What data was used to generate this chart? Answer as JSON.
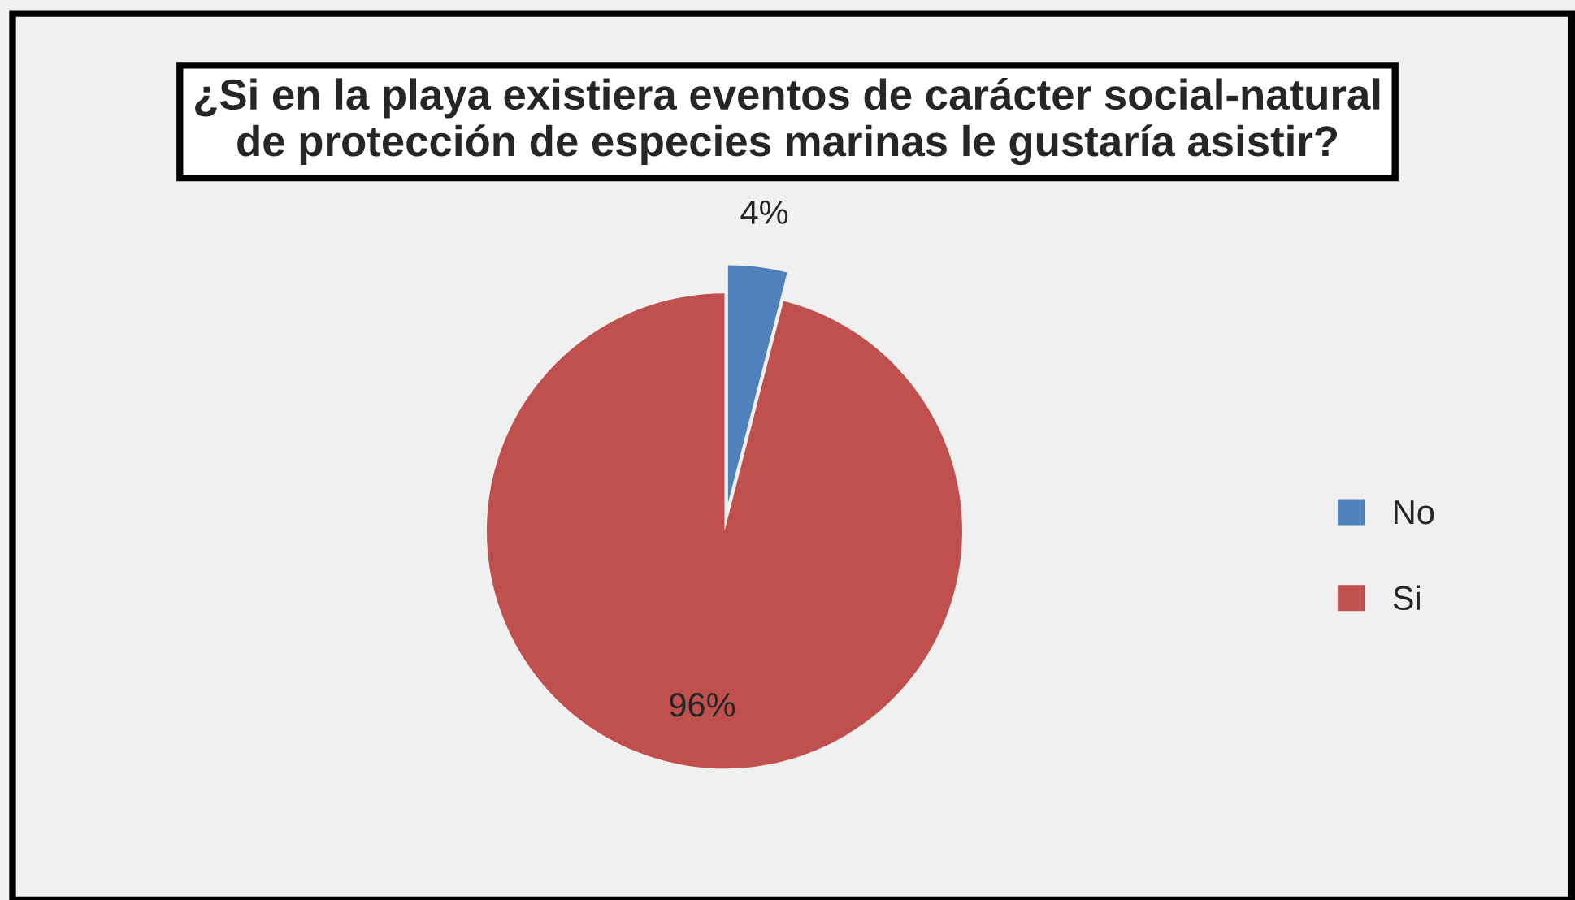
{
  "chart_data": {
    "type": "pie",
    "title": "¿Si en la playa existiera eventos de carácter social-natural\nde protección de especies marinas le gustaría asistir?",
    "categories": [
      "No",
      "Si"
    ],
    "values": [
      4,
      96
    ],
    "colors": [
      "#4f81bd",
      "#c0504d"
    ],
    "value_labels": [
      "4%",
      "96%"
    ],
    "legend": "right"
  }
}
